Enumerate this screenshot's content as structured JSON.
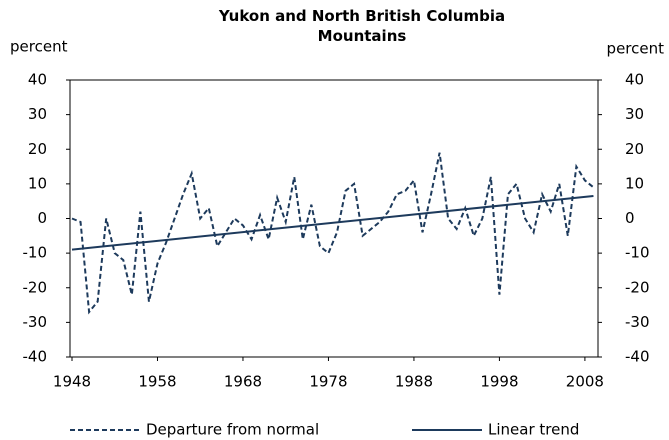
{
  "chart_data": {
    "type": "line",
    "title": "Yukon and North British Columbia Mountains",
    "y_label": "percent",
    "y2_label": "percent",
    "xlim": [
      1948,
      2010
    ],
    "xticks": [
      1948,
      1958,
      1968,
      1978,
      1988,
      1998,
      2008
    ],
    "ylim": [
      -40,
      40
    ],
    "yticks": [
      -40,
      -30,
      -20,
      -10,
      0,
      10,
      20,
      30,
      40
    ],
    "y2lim": [
      -40,
      40
    ],
    "y2ticks": [
      -40,
      -30,
      -20,
      -10,
      0,
      10,
      20,
      30,
      40
    ],
    "legend": "bottom",
    "series": [
      {
        "name": "Departure from normal",
        "color": "#1d3a5c",
        "dashed": true,
        "x": [
          1948,
          1949,
          1950,
          1951,
          1952,
          1953,
          1954,
          1955,
          1956,
          1957,
          1958,
          1959,
          1960,
          1961,
          1962,
          1963,
          1964,
          1965,
          1966,
          1967,
          1968,
          1969,
          1970,
          1971,
          1972,
          1973,
          1974,
          1975,
          1976,
          1977,
          1978,
          1979,
          1980,
          1981,
          1982,
          1983,
          1984,
          1985,
          1986,
          1987,
          1988,
          1989,
          1990,
          1991,
          1992,
          1993,
          1994,
          1995,
          1996,
          1997,
          1998,
          1999,
          2000,
          2001,
          2002,
          2003,
          2004,
          2005,
          2006,
          2007,
          2008,
          2009
        ],
        "values": [
          0,
          -1,
          -27,
          -24,
          0,
          -10,
          -12,
          -22,
          2,
          -24,
          -13,
          -7,
          0,
          7,
          13,
          0,
          3,
          -8,
          -4,
          0,
          -2,
          -6,
          1,
          -6,
          6,
          -1,
          12,
          -6,
          4,
          -8,
          -10,
          -4,
          8,
          10,
          -5,
          -3,
          -1,
          2,
          7,
          8,
          11,
          -4,
          7,
          19,
          0,
          -3,
          3,
          -5,
          0,
          12,
          -22,
          7,
          10,
          0,
          -4,
          7,
          2,
          10,
          -5,
          15,
          11,
          9
        ]
      },
      {
        "name": "Linear trend",
        "color": "#1d3a5c",
        "dashed": false,
        "x": [
          1948,
          2009
        ],
        "values": [
          -9,
          6.5
        ]
      }
    ]
  }
}
